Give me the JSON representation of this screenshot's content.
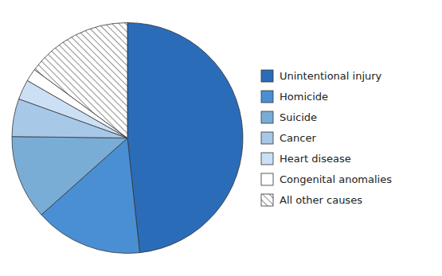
{
  "chart_data": {
    "type": "pie",
    "categories": [
      "Unintentional injury",
      "Homicide",
      "Suicide",
      "Cancer",
      "Heart disease",
      "Congenital anomalies",
      "All other causes"
    ],
    "values": [
      48.3,
      15.1,
      11.8,
      5.3,
      2.8,
      1.8,
      14.9
    ],
    "colors": [
      "#2b6cb8",
      "#4a8fd4",
      "#7aadd6",
      "#a8c8e8",
      "#cce0f5",
      "#ffffff",
      "#ffffff"
    ],
    "legend": "right"
  }
}
